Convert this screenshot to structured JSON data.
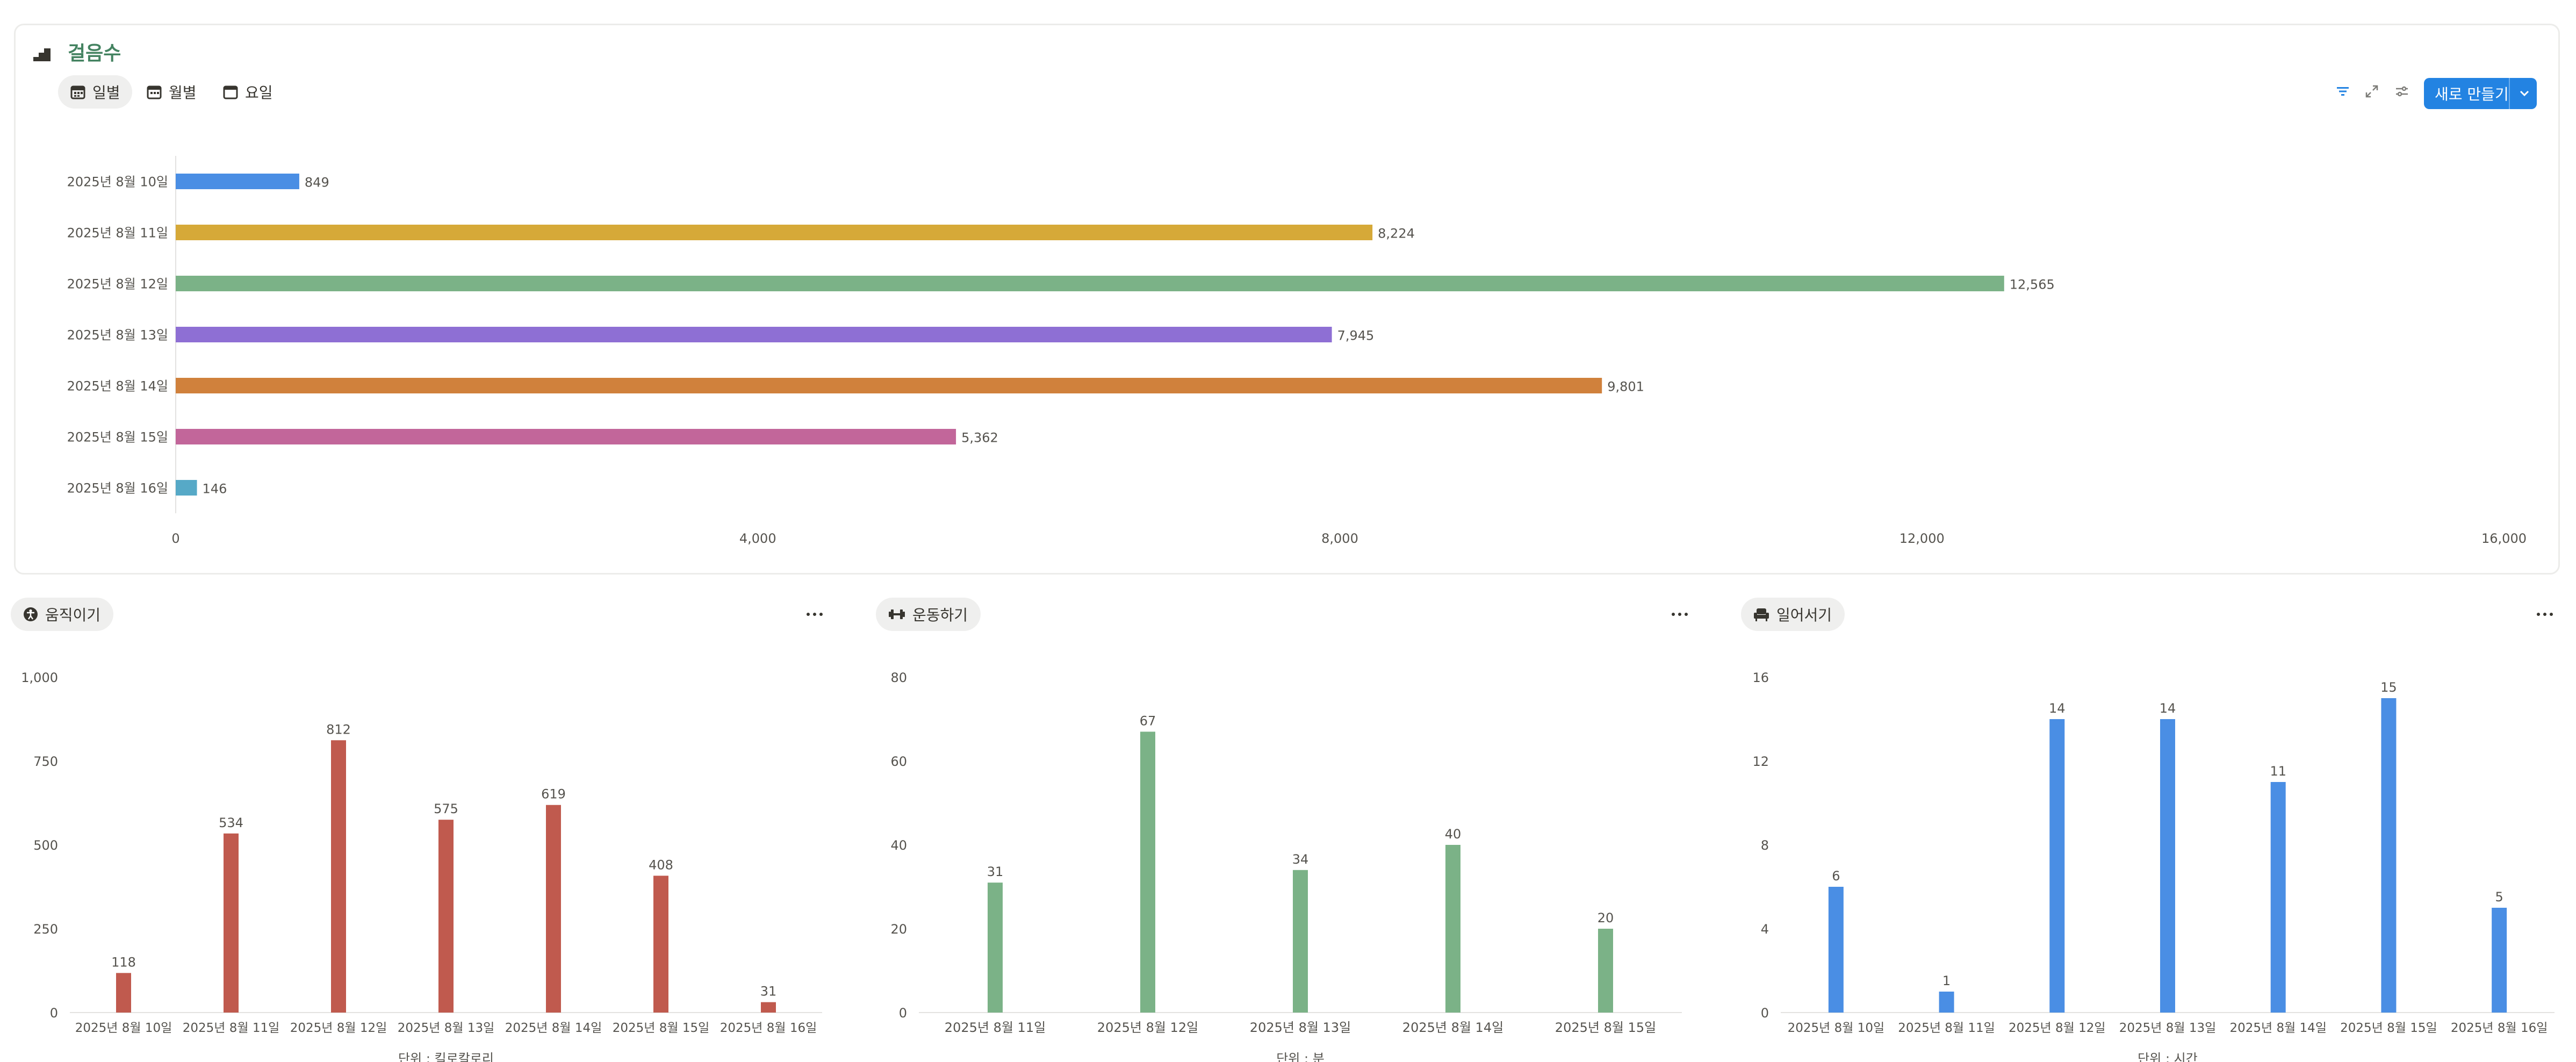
{
  "main_chart": {
    "title": "걸음수",
    "tabs": [
      {
        "label": "일별",
        "active": true
      },
      {
        "label": "월별",
        "active": false
      },
      {
        "label": "요일",
        "active": false
      }
    ],
    "toolbar": {
      "new_button_label": "새로 만들기"
    }
  },
  "panels": [
    {
      "title": "움직이기",
      "icon": "person-icon",
      "more": "..."
    },
    {
      "title": "운동하기",
      "icon": "dumbbell-icon",
      "more": "..."
    },
    {
      "title": "일어서기",
      "icon": "armchair-icon",
      "more": "..."
    }
  ],
  "chart_data": [
    {
      "type": "bar",
      "orientation": "horizontal",
      "categories": [
        "2025년 8월 10일",
        "2025년 8월 11일",
        "2025년 8월 12일",
        "2025년 8월 13일",
        "2025년 8월 14일",
        "2025년 8월 15일",
        "2025년 8월 16일"
      ],
      "values": [
        849,
        8224,
        12565,
        7945,
        9801,
        5362,
        146
      ],
      "value_labels": [
        "849",
        "8,224",
        "12,565",
        "7,945",
        "9,801",
        "5,362",
        "146"
      ],
      "colors": [
        "#4a8ee4",
        "#d6a938",
        "#7bb287",
        "#8e6fd4",
        "#d0813c",
        "#c2669a",
        "#56a9c7"
      ],
      "xlim": [
        0,
        16000
      ],
      "xticks": [
        "0",
        "4,000",
        "8,000",
        "12,000",
        "16,000"
      ],
      "xtick_values": [
        0,
        4000,
        8000,
        12000,
        16000
      ]
    },
    {
      "type": "bar",
      "categories": [
        "2025년 8월 10일",
        "2025년 8월 11일",
        "2025년 8월 12일",
        "2025년 8월 13일",
        "2025년 8월 14일",
        "2025년 8월 15일",
        "2025년 8월 16일"
      ],
      "values": [
        118,
        534,
        812,
        575,
        619,
        408,
        31
      ],
      "value_labels": [
        "118",
        "534",
        "812",
        "575",
        "619",
        "408",
        "31"
      ],
      "color": "#c05a4e",
      "ylim": [
        0,
        1000
      ],
      "yticks": [
        "0",
        "250",
        "500",
        "750",
        "1,000"
      ],
      "ytick_values": [
        0,
        250,
        500,
        750,
        1000
      ],
      "xlabel": "단위 : 킬로칼로리"
    },
    {
      "type": "bar",
      "categories": [
        "2025년 8월 11일",
        "2025년 8월 12일",
        "2025년 8월 13일",
        "2025년 8월 14일",
        "2025년 8월 15일"
      ],
      "values": [
        31,
        67,
        34,
        40,
        20
      ],
      "value_labels": [
        "31",
        "67",
        "34",
        "40",
        "20"
      ],
      "color": "#7bb287",
      "ylim": [
        0,
        80
      ],
      "yticks": [
        "0",
        "20",
        "40",
        "60",
        "80"
      ],
      "ytick_values": [
        0,
        20,
        40,
        60,
        80
      ],
      "xlabel": "단위 : 분"
    },
    {
      "type": "bar",
      "categories": [
        "2025년 8월 10일",
        "2025년 8월 11일",
        "2025년 8월 12일",
        "2025년 8월 13일",
        "2025년 8월 14일",
        "2025년 8월 15일",
        "2025년 8월 16일"
      ],
      "values": [
        6,
        1,
        14,
        14,
        11,
        15,
        5
      ],
      "value_labels": [
        "6",
        "1",
        "14",
        "14",
        "11",
        "15",
        "5"
      ],
      "color": "#4a8ee4",
      "ylim": [
        0,
        16
      ],
      "yticks": [
        "0",
        "4",
        "8",
        "12",
        "16"
      ],
      "ytick_values": [
        0,
        4,
        8,
        12,
        16
      ],
      "xlabel": "단위 : 시간"
    }
  ]
}
